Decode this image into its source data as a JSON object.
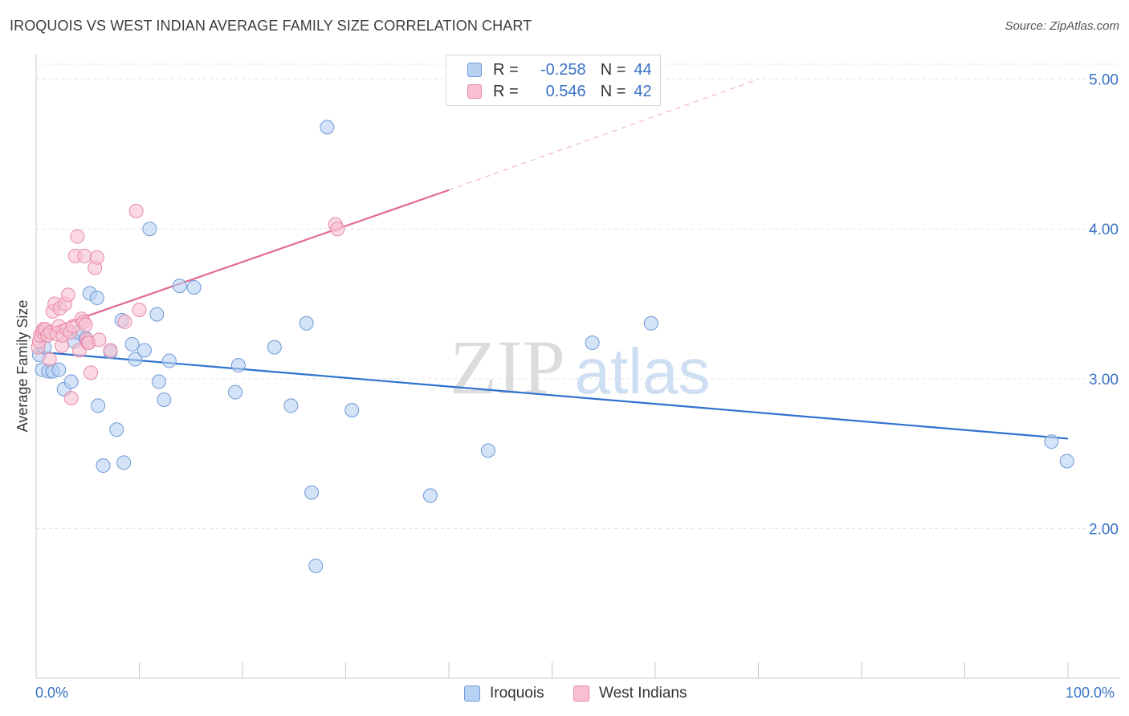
{
  "title": "IROQUOIS VS WEST INDIAN AVERAGE FAMILY SIZE CORRELATION CHART",
  "source": "Source: ZipAtlas.com",
  "colors": {
    "blue_fill": "#b7d1f2",
    "blue_stroke": "#6f9ad6",
    "blue_line": "#2f72cf",
    "pink_fill": "#f7bfd0",
    "pink_stroke": "#e98aa9",
    "pink_line": "#e26a92",
    "axis_text": "#3a73c6",
    "grid": "#e3e3e3"
  },
  "legend": {
    "r_label": "R =",
    "n_label": "N =",
    "iroquois": {
      "r": "-0.258",
      "n": "44"
    },
    "west_indians": {
      "r": "0.546",
      "n": "42"
    }
  },
  "chart_data": {
    "type": "scatter",
    "title": "IROQUOIS VS WEST INDIAN AVERAGE FAMILY SIZE CORRELATION CHART",
    "xlabel": "",
    "ylabel": "Average Family Size",
    "xlim": [
      0,
      100
    ],
    "ylim": [
      1.0,
      5.1
    ],
    "x_tick_labels": [
      "0.0%",
      "100.0%"
    ],
    "y_ticks": [
      2.0,
      3.0,
      4.0,
      5.0
    ],
    "y_tick_labels": [
      "2.00",
      "3.00",
      "4.00",
      "5.00"
    ],
    "watermark": {
      "zip": "ZIP",
      "atlas": "atlas"
    },
    "series": [
      {
        "name": "Iroquois",
        "points": [
          [
            0.3,
            3.16
          ],
          [
            0.6,
            3.06
          ],
          [
            0.8,
            3.21
          ],
          [
            1.2,
            3.05
          ],
          [
            1.6,
            3.05
          ],
          [
            2.2,
            3.06
          ],
          [
            2.7,
            2.93
          ],
          [
            3.4,
            2.98
          ],
          [
            3.7,
            3.25
          ],
          [
            4.1,
            3.31
          ],
          [
            4.8,
            3.27
          ],
          [
            5.2,
            3.57
          ],
          [
            5.9,
            3.54
          ],
          [
            6.0,
            2.82
          ],
          [
            6.5,
            2.42
          ],
          [
            7.2,
            3.18
          ],
          [
            7.8,
            2.66
          ],
          [
            8.3,
            3.39
          ],
          [
            8.5,
            2.44
          ],
          [
            9.3,
            3.23
          ],
          [
            9.6,
            3.13
          ],
          [
            10.5,
            3.19
          ],
          [
            11.0,
            4.0
          ],
          [
            11.7,
            3.43
          ],
          [
            11.9,
            2.98
          ],
          [
            12.4,
            2.86
          ],
          [
            12.9,
            3.12
          ],
          [
            13.9,
            3.62
          ],
          [
            15.3,
            3.61
          ],
          [
            19.3,
            2.91
          ],
          [
            19.6,
            3.09
          ],
          [
            23.1,
            3.21
          ],
          [
            24.7,
            2.82
          ],
          [
            26.2,
            3.37
          ],
          [
            26.7,
            2.24
          ],
          [
            27.1,
            1.75
          ],
          [
            28.2,
            4.68
          ],
          [
            30.6,
            2.79
          ],
          [
            38.2,
            2.22
          ],
          [
            43.8,
            2.52
          ],
          [
            53.9,
            3.24
          ],
          [
            59.6,
            3.37
          ],
          [
            98.4,
            2.58
          ],
          [
            99.9,
            2.45
          ]
        ],
        "trend": {
          "x": [
            0,
            100
          ],
          "y": [
            3.18,
            2.6
          ]
        }
      },
      {
        "name": "West Indians",
        "points": [
          [
            0.2,
            3.21
          ],
          [
            0.3,
            3.25
          ],
          [
            0.4,
            3.29
          ],
          [
            0.6,
            3.31
          ],
          [
            0.7,
            3.33
          ],
          [
            0.9,
            3.33
          ],
          [
            1.1,
            3.29
          ],
          [
            1.3,
            3.13
          ],
          [
            1.4,
            3.31
          ],
          [
            1.6,
            3.45
          ],
          [
            1.8,
            3.5
          ],
          [
            2.0,
            3.3
          ],
          [
            2.2,
            3.35
          ],
          [
            2.3,
            3.47
          ],
          [
            2.5,
            3.22
          ],
          [
            2.6,
            3.29
          ],
          [
            2.8,
            3.5
          ],
          [
            3.0,
            3.33
          ],
          [
            3.1,
            3.56
          ],
          [
            3.3,
            3.31
          ],
          [
            3.4,
            2.87
          ],
          [
            3.6,
            3.35
          ],
          [
            3.8,
            3.82
          ],
          [
            4.0,
            3.95
          ],
          [
            4.2,
            3.19
          ],
          [
            4.4,
            3.4
          ],
          [
            4.6,
            3.38
          ],
          [
            4.7,
            3.82
          ],
          [
            4.8,
            3.36
          ],
          [
            4.9,
            3.26
          ],
          [
            5.0,
            3.24
          ],
          [
            5.1,
            3.24
          ],
          [
            5.3,
            3.04
          ],
          [
            5.7,
            3.74
          ],
          [
            5.9,
            3.81
          ],
          [
            6.1,
            3.26
          ],
          [
            7.2,
            3.19
          ],
          [
            8.6,
            3.38
          ],
          [
            9.7,
            4.12
          ],
          [
            10.0,
            3.46
          ],
          [
            29.0,
            4.03
          ],
          [
            29.2,
            4.0
          ]
        ],
        "trend": {
          "x": [
            0,
            40
          ],
          "y": [
            3.3,
            4.26
          ]
        },
        "trend_extension": {
          "x": [
            40,
            70
          ],
          "y": [
            4.26,
            5.0
          ]
        }
      }
    ]
  },
  "bottom_legend": {
    "iroquois": "Iroquois",
    "west_indians": "West Indians"
  }
}
